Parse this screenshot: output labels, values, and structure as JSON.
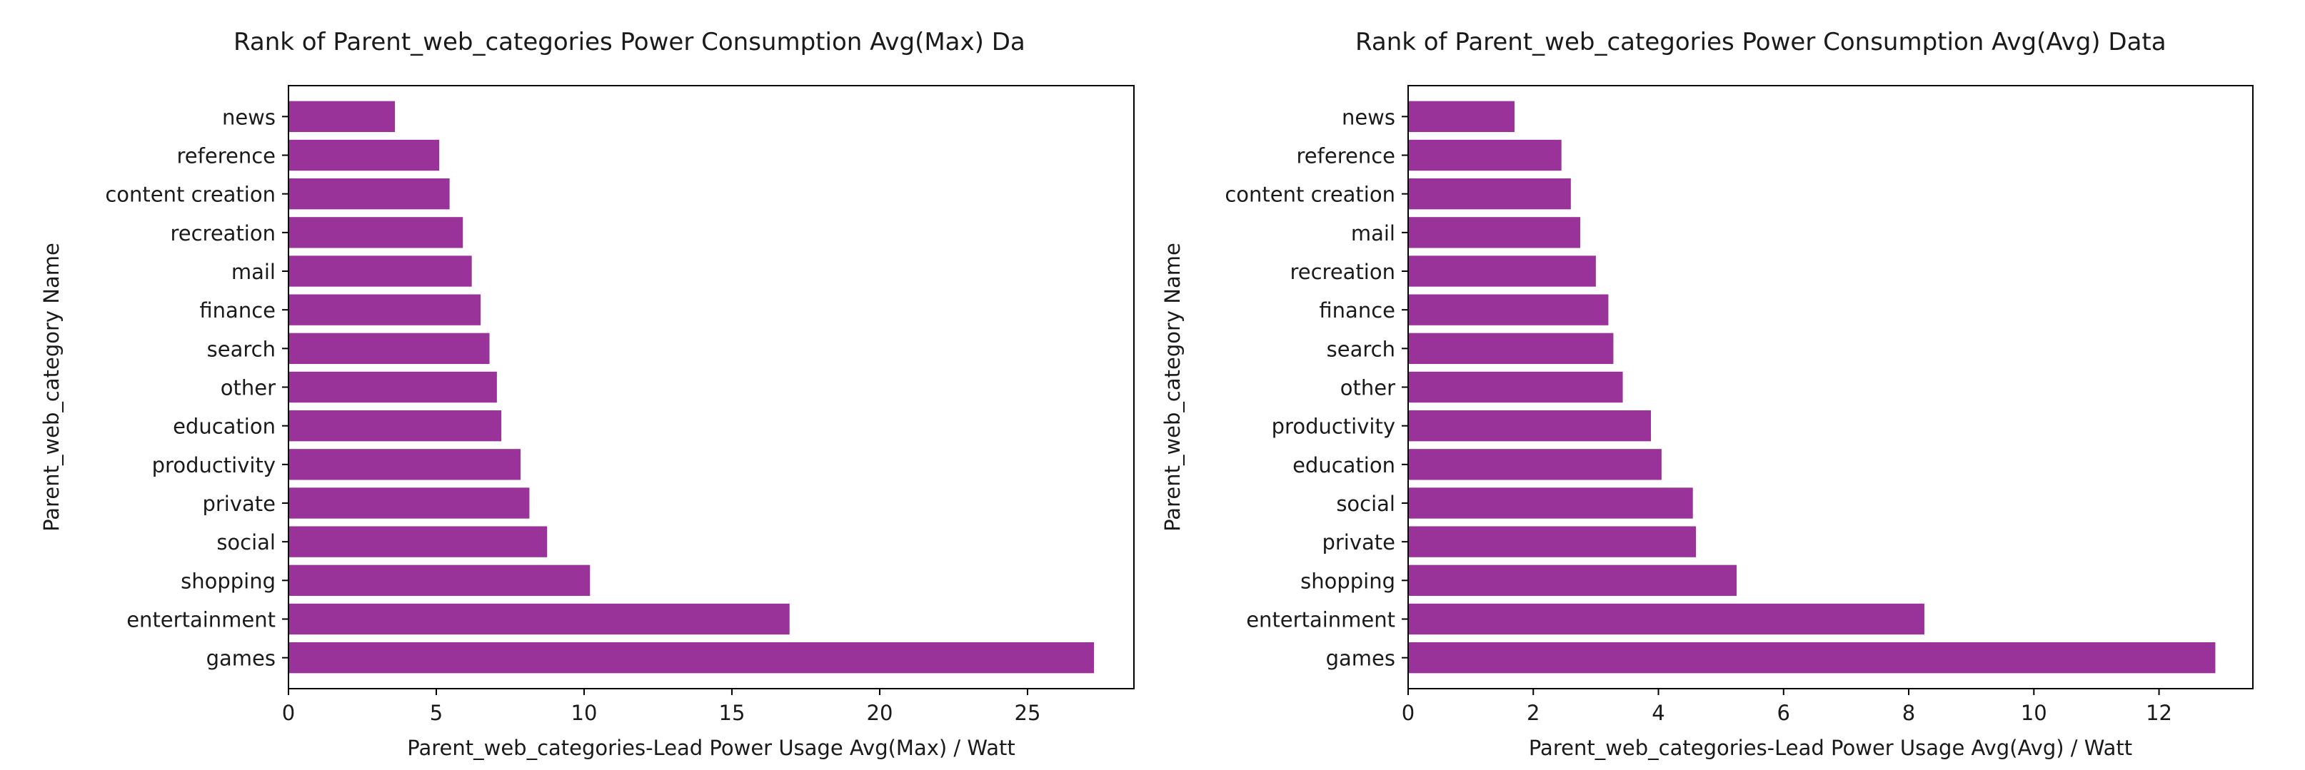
{
  "chart_data": [
    {
      "type": "bar",
      "orientation": "horizontal",
      "title": "Rank of Parent_web_categories Power Consumption Avg(Max) Da",
      "xlabel": "Parent_web_categories-Lead Power Usage Avg(Max) / Watt",
      "ylabel": "Parent_web_category Name",
      "xlim": [
        0,
        28.6
      ],
      "xticks": [
        0,
        5,
        10,
        15,
        20,
        25
      ],
      "bar_color": "#993399",
      "grid": false,
      "categories": [
        "news",
        "reference",
        "content creation",
        "recreation",
        "mail",
        "finance",
        "search",
        "other",
        "education",
        "productivity",
        "private",
        "social",
        "shopping",
        "entertainment",
        "games"
      ],
      "values": [
        3.6,
        5.1,
        5.45,
        5.9,
        6.2,
        6.5,
        6.8,
        7.05,
        7.2,
        7.85,
        8.15,
        8.75,
        10.2,
        16.95,
        27.25
      ]
    },
    {
      "type": "bar",
      "orientation": "horizontal",
      "title": "Rank of Parent_web_categories Power Consumption Avg(Avg) Data",
      "xlabel": "Parent_web_categories-Lead Power Usage Avg(Avg) / Watt",
      "ylabel": "Parent_web_category Name",
      "xlim": [
        0,
        13.5
      ],
      "xticks": [
        0,
        2,
        4,
        6,
        8,
        10,
        12
      ],
      "bar_color": "#993399",
      "grid": false,
      "categories": [
        "news",
        "reference",
        "content creation",
        "mail",
        "recreation",
        "finance",
        "search",
        "other",
        "productivity",
        "education",
        "social",
        "private",
        "shopping",
        "entertainment",
        "games"
      ],
      "values": [
        1.7,
        2.45,
        2.6,
        2.75,
        3.0,
        3.2,
        3.28,
        3.43,
        3.88,
        4.05,
        4.55,
        4.6,
        5.25,
        8.25,
        12.9
      ]
    }
  ]
}
